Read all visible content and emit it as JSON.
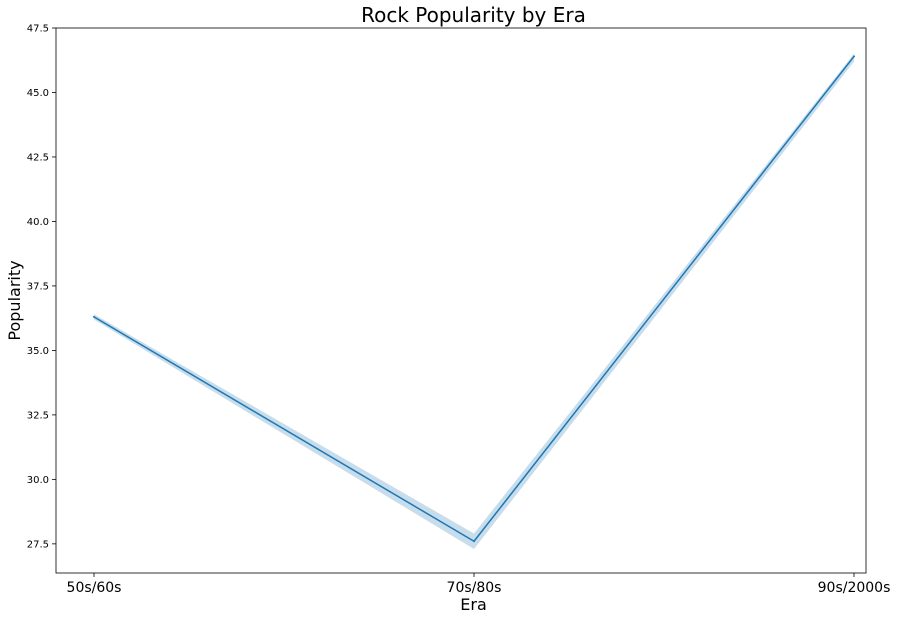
{
  "chart_data": {
    "type": "line",
    "title": "Rock Popularity by Era",
    "xlabel": "Era",
    "ylabel": "Popularity",
    "categories": [
      "50s/60s",
      "70s/80s",
      "90s/2000s"
    ],
    "series": [
      {
        "values": [
          36.3,
          27.6,
          46.4
        ],
        "ci_lower": [
          36.2,
          27.3,
          46.2
        ],
        "ci_upper": [
          36.4,
          27.9,
          46.5
        ],
        "color": "#1f77b4",
        "band_color": "#1f77b4"
      }
    ],
    "ylim": [
      26.37,
      47.5
    ],
    "yticks": [
      "27.5",
      "30.0",
      "32.5",
      "35.0",
      "37.5",
      "40.0",
      "42.5",
      "45.0",
      "47.5"
    ],
    "grid": false,
    "legend": "none"
  }
}
